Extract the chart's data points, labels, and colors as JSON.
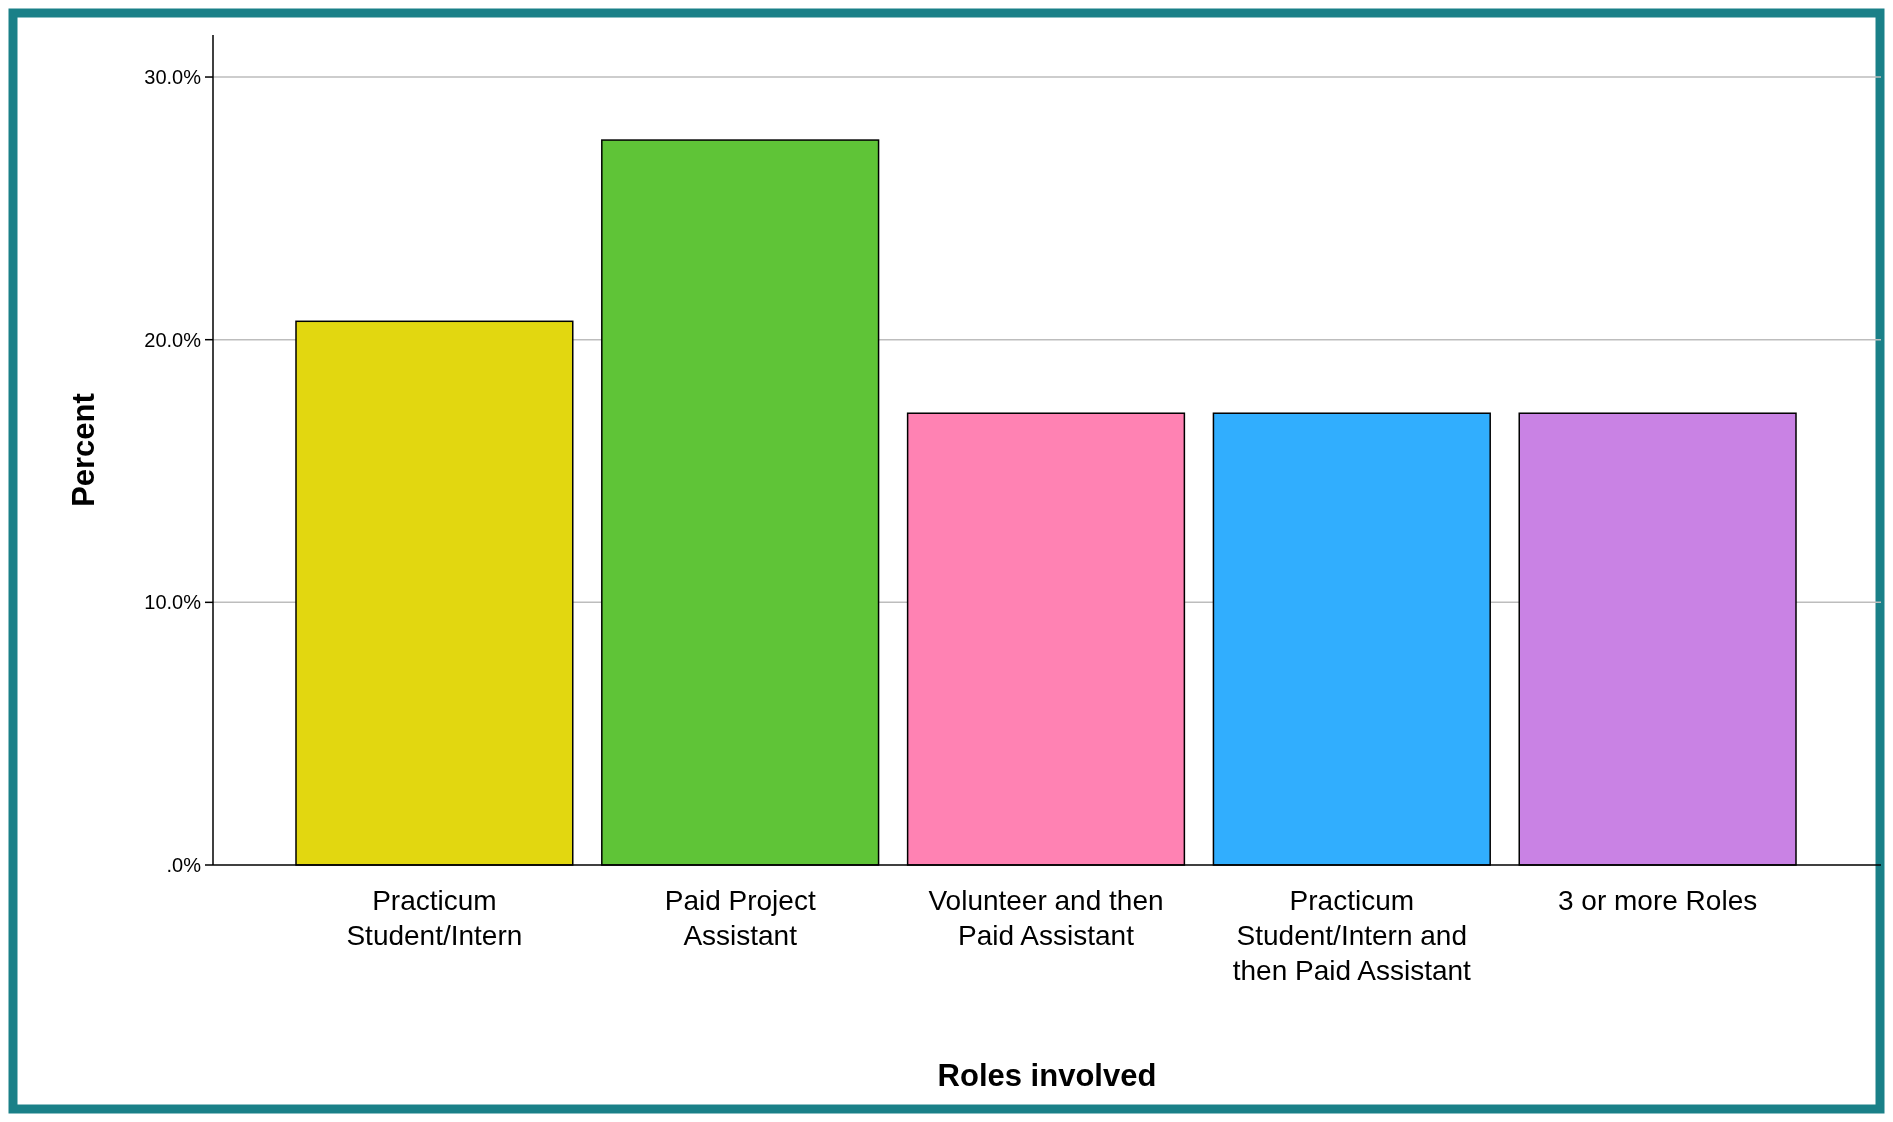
{
  "chart_data": {
    "type": "bar",
    "xlabel": "Roles involved",
    "ylabel": "Percent",
    "categories": [
      "Practicum Student/Intern",
      "Paid Project Assistant",
      "Volunteer and then Paid Assistant",
      "Practicum Student/Intern and then Paid Assistant",
      "3 or more Roles"
    ],
    "values": [
      20.7,
      27.6,
      17.2,
      17.2,
      17.2
    ],
    "colors": [
      "#e2d710",
      "#5fc437",
      "#ff82b3",
      "#31aefe",
      "#c982e4"
    ],
    "ylim": [
      0,
      31.6
    ],
    "yticks": [
      {
        "value": 0,
        "label": ".0%"
      },
      {
        "value": 10,
        "label": "10.0%"
      },
      {
        "value": 20,
        "label": "20.0%"
      },
      {
        "value": 30,
        "label": "30.0%"
      }
    ],
    "grid": "y"
  }
}
